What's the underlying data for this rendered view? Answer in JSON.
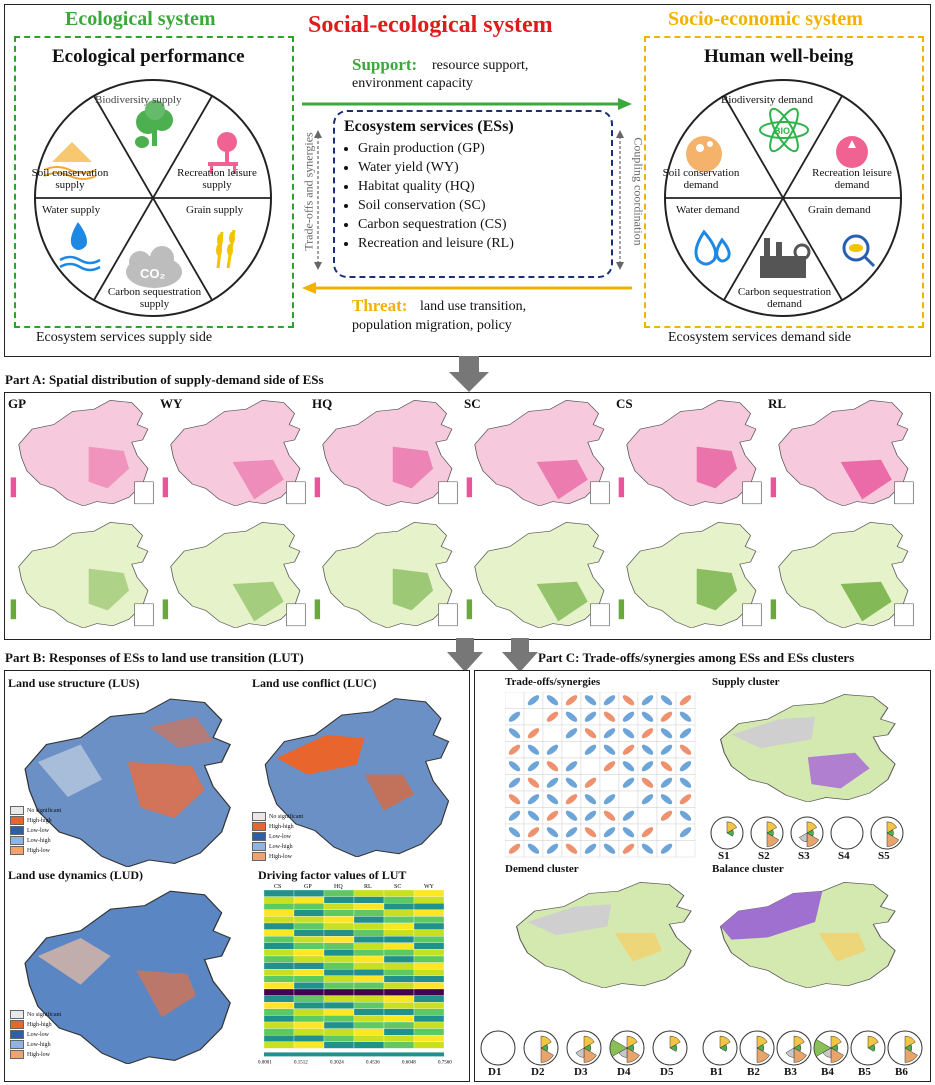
{
  "top": {
    "eco_system": "Ecological system",
    "social_ecological": "Social-ecological system",
    "socio_economic": "Socio-economic system",
    "eco_performance": "Ecological performance",
    "human_wellbeing": "Human well-being",
    "supply_segments": [
      "Biodiversity supply",
      "Recreation leisure supply",
      "Grain supply",
      "Carbon sequestration supply",
      "Water supply",
      "Soil conservation supply"
    ],
    "demand_segments": [
      "Biodiversity demand",
      "Recreation leisure demand",
      "Grain demand",
      "Carbon sequestration demand",
      "Water demand",
      "Soil conservation demand"
    ],
    "support_label": "Support:",
    "support_text_1": "resource support,",
    "support_text_2": "environment capacity",
    "threat_label": "Threat:",
    "threat_text_1": "land use transition,",
    "threat_text_2": "population migration, policy",
    "tradeoffs_vertical": "Trade-offs and synergies",
    "coupling_vertical": "Coupling coordination",
    "ess_title": "Ecosystem services (ESs)",
    "ess_items": [
      "Grain production (GP)",
      "Water yield (WY)",
      "Habitat quality (HQ)",
      "Soil conservation (SC)",
      "Carbon sequestration (CS)",
      "Recreation and leisure (RL)"
    ],
    "supply_side": "Ecosystem services supply side",
    "demand_side": "Ecosystem services demand side",
    "co2": "CO₂",
    "bio": "BIO"
  },
  "partA": {
    "title": "Part A: Spatial distribution of supply-demand side of ESs",
    "maps": [
      "GP",
      "WY",
      "HQ",
      "SC",
      "CS",
      "RL"
    ],
    "supply_color": "#e6549a",
    "demand_color": "#6aaa3a"
  },
  "partB": {
    "title": "Part B: Responses of ESs to land use transition (LUT)",
    "lus": "Land use structure (LUS)",
    "luc": "Land use conflict (LUC)",
    "lud": "Land use dynamics (LUD)",
    "driving": "Driving factor values of LUT",
    "legend": [
      "No significant",
      "High-high",
      "Low-low",
      "Low-high",
      "High-low"
    ],
    "heat_cols": [
      "CS",
      "GP",
      "HQ",
      "RL",
      "SC",
      "WY"
    ],
    "heat_ticks": [
      "0.0001",
      "0.1512",
      "0.3024",
      "0.4536",
      "0.6048",
      "0.7560"
    ]
  },
  "partC": {
    "title": "Part C: Trade-offs/synergies among ESs and ESs clusters",
    "tradeoffs": "Trade-offs/synergies",
    "supply_cluster": "Supply cluster",
    "demand_cluster": "Demend cluster",
    "balance_cluster": "Balance cluster",
    "s_labels": [
      "S1",
      "S2",
      "S3",
      "S4",
      "S5"
    ],
    "d_labels": [
      "D1",
      "D2",
      "D3",
      "D4",
      "D5"
    ],
    "b_labels": [
      "B1",
      "B2",
      "B3",
      "B4",
      "B5",
      "B6"
    ]
  }
}
